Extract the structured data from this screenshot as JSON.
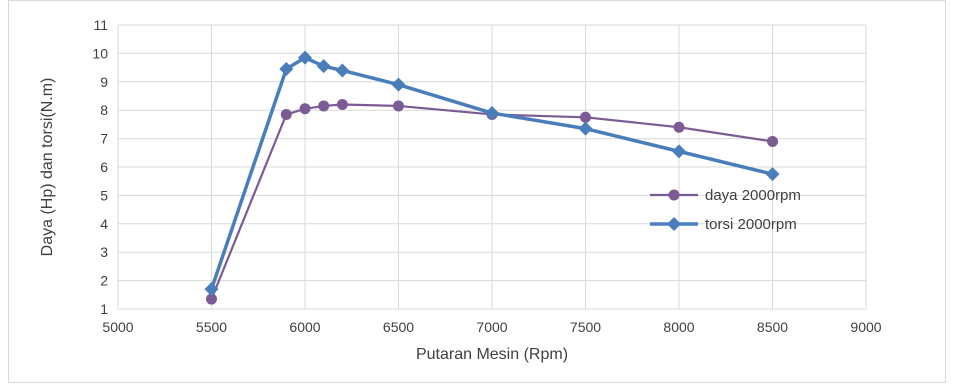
{
  "chart_data": {
    "type": "line",
    "title": "",
    "xlabel": "Putaran Mesin (Rpm)",
    "ylabel": "Daya (Hp) dan torsi(N.m)",
    "xlim": [
      5000,
      9000
    ],
    "ylim": [
      1,
      11
    ],
    "xticks": [
      5000,
      5500,
      6000,
      6500,
      7000,
      7500,
      8000,
      8500,
      9000
    ],
    "yticks": [
      1,
      2,
      3,
      4,
      5,
      6,
      7,
      8,
      9,
      10,
      11
    ],
    "grid": true,
    "legend_position": "right",
    "series": [
      {
        "name": "daya 2000rpm",
        "color": "#7b5b94",
        "marker": "circle",
        "x": [
          5500,
          5900,
          6000,
          6100,
          6200,
          6500,
          7000,
          7500,
          8000,
          8500
        ],
        "y": [
          1.35,
          7.85,
          8.05,
          8.15,
          8.2,
          8.15,
          7.85,
          7.75,
          7.4,
          6.9
        ]
      },
      {
        "name": "torsi 2000rpm",
        "color": "#4a7ebb",
        "marker": "diamond",
        "x": [
          5500,
          5900,
          6000,
          6100,
          6200,
          6500,
          7000,
          7500,
          8000,
          8500
        ],
        "y": [
          1.7,
          9.45,
          9.85,
          9.55,
          9.4,
          8.9,
          7.9,
          7.35,
          6.55,
          5.75
        ]
      }
    ]
  }
}
